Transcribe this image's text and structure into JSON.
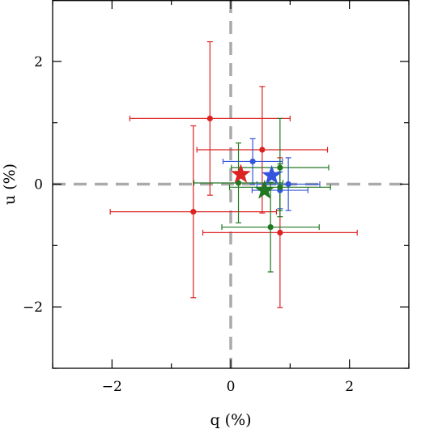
{
  "chart_data": {
    "type": "scatter",
    "title": "",
    "xlabel": "q (%)",
    "ylabel": "u (%)",
    "xlim": [
      -3,
      3
    ],
    "ylim": [
      -3,
      3
    ],
    "xticks": [
      -2,
      0,
      2
    ],
    "yticks": [
      -2,
      0,
      2
    ],
    "xtick_labels": [
      "−2",
      "0",
      "2"
    ],
    "ytick_labels": [
      "−2",
      "0",
      "2"
    ],
    "minor_tick_step": 1,
    "grid": false,
    "reference_lines": [
      {
        "axis": "x",
        "value": 0,
        "style": "dashed",
        "color": "#aaaaaa"
      },
      {
        "axis": "y",
        "value": 0,
        "style": "dashed",
        "color": "#aaaaaa"
      }
    ],
    "series": [
      {
        "color": "#dd2222",
        "points": [
          {
            "q": -0.35,
            "u": 1.07,
            "q_err": 1.35,
            "u_err": 1.25
          },
          {
            "q": 0.53,
            "u": 0.56,
            "q_err": 1.1,
            "u_err": 1.03
          },
          {
            "q": -0.63,
            "u": -0.45,
            "q_err": 1.4,
            "u_err": 1.4
          },
          {
            "q": 0.83,
            "u": -0.79,
            "q_err": 1.3,
            "u_err": 1.22
          }
        ],
        "mean": {
          "q": 0.17,
          "u": 0.16
        }
      },
      {
        "color": "#3355dd",
        "points": [
          {
            "q": 0.37,
            "u": 0.37,
            "q_err": 0.5,
            "u_err": 0.37
          },
          {
            "q": 0.97,
            "u": 0.0,
            "q_err": 0.53,
            "u_err": 0.43
          },
          {
            "q": 0.83,
            "u": -0.1,
            "q_err": 0.47,
            "u_err": 0.3
          }
        ],
        "mean": {
          "q": 0.69,
          "u": 0.14
        }
      },
      {
        "color": "#227722",
        "points": [
          {
            "q": 0.13,
            "u": 0.02,
            "q_err": 0.75,
            "u_err": 0.65
          },
          {
            "q": 0.83,
            "u": 0.27,
            "q_err": 0.82,
            "u_err": 0.8
          },
          {
            "q": 0.83,
            "u": -0.05,
            "q_err": 0.85,
            "u_err": 0.38
          },
          {
            "q": 0.67,
            "u": -0.7,
            "q_err": 0.82,
            "u_err": 0.73
          }
        ],
        "mean": {
          "q": 0.57,
          "u": -0.1
        }
      }
    ]
  }
}
